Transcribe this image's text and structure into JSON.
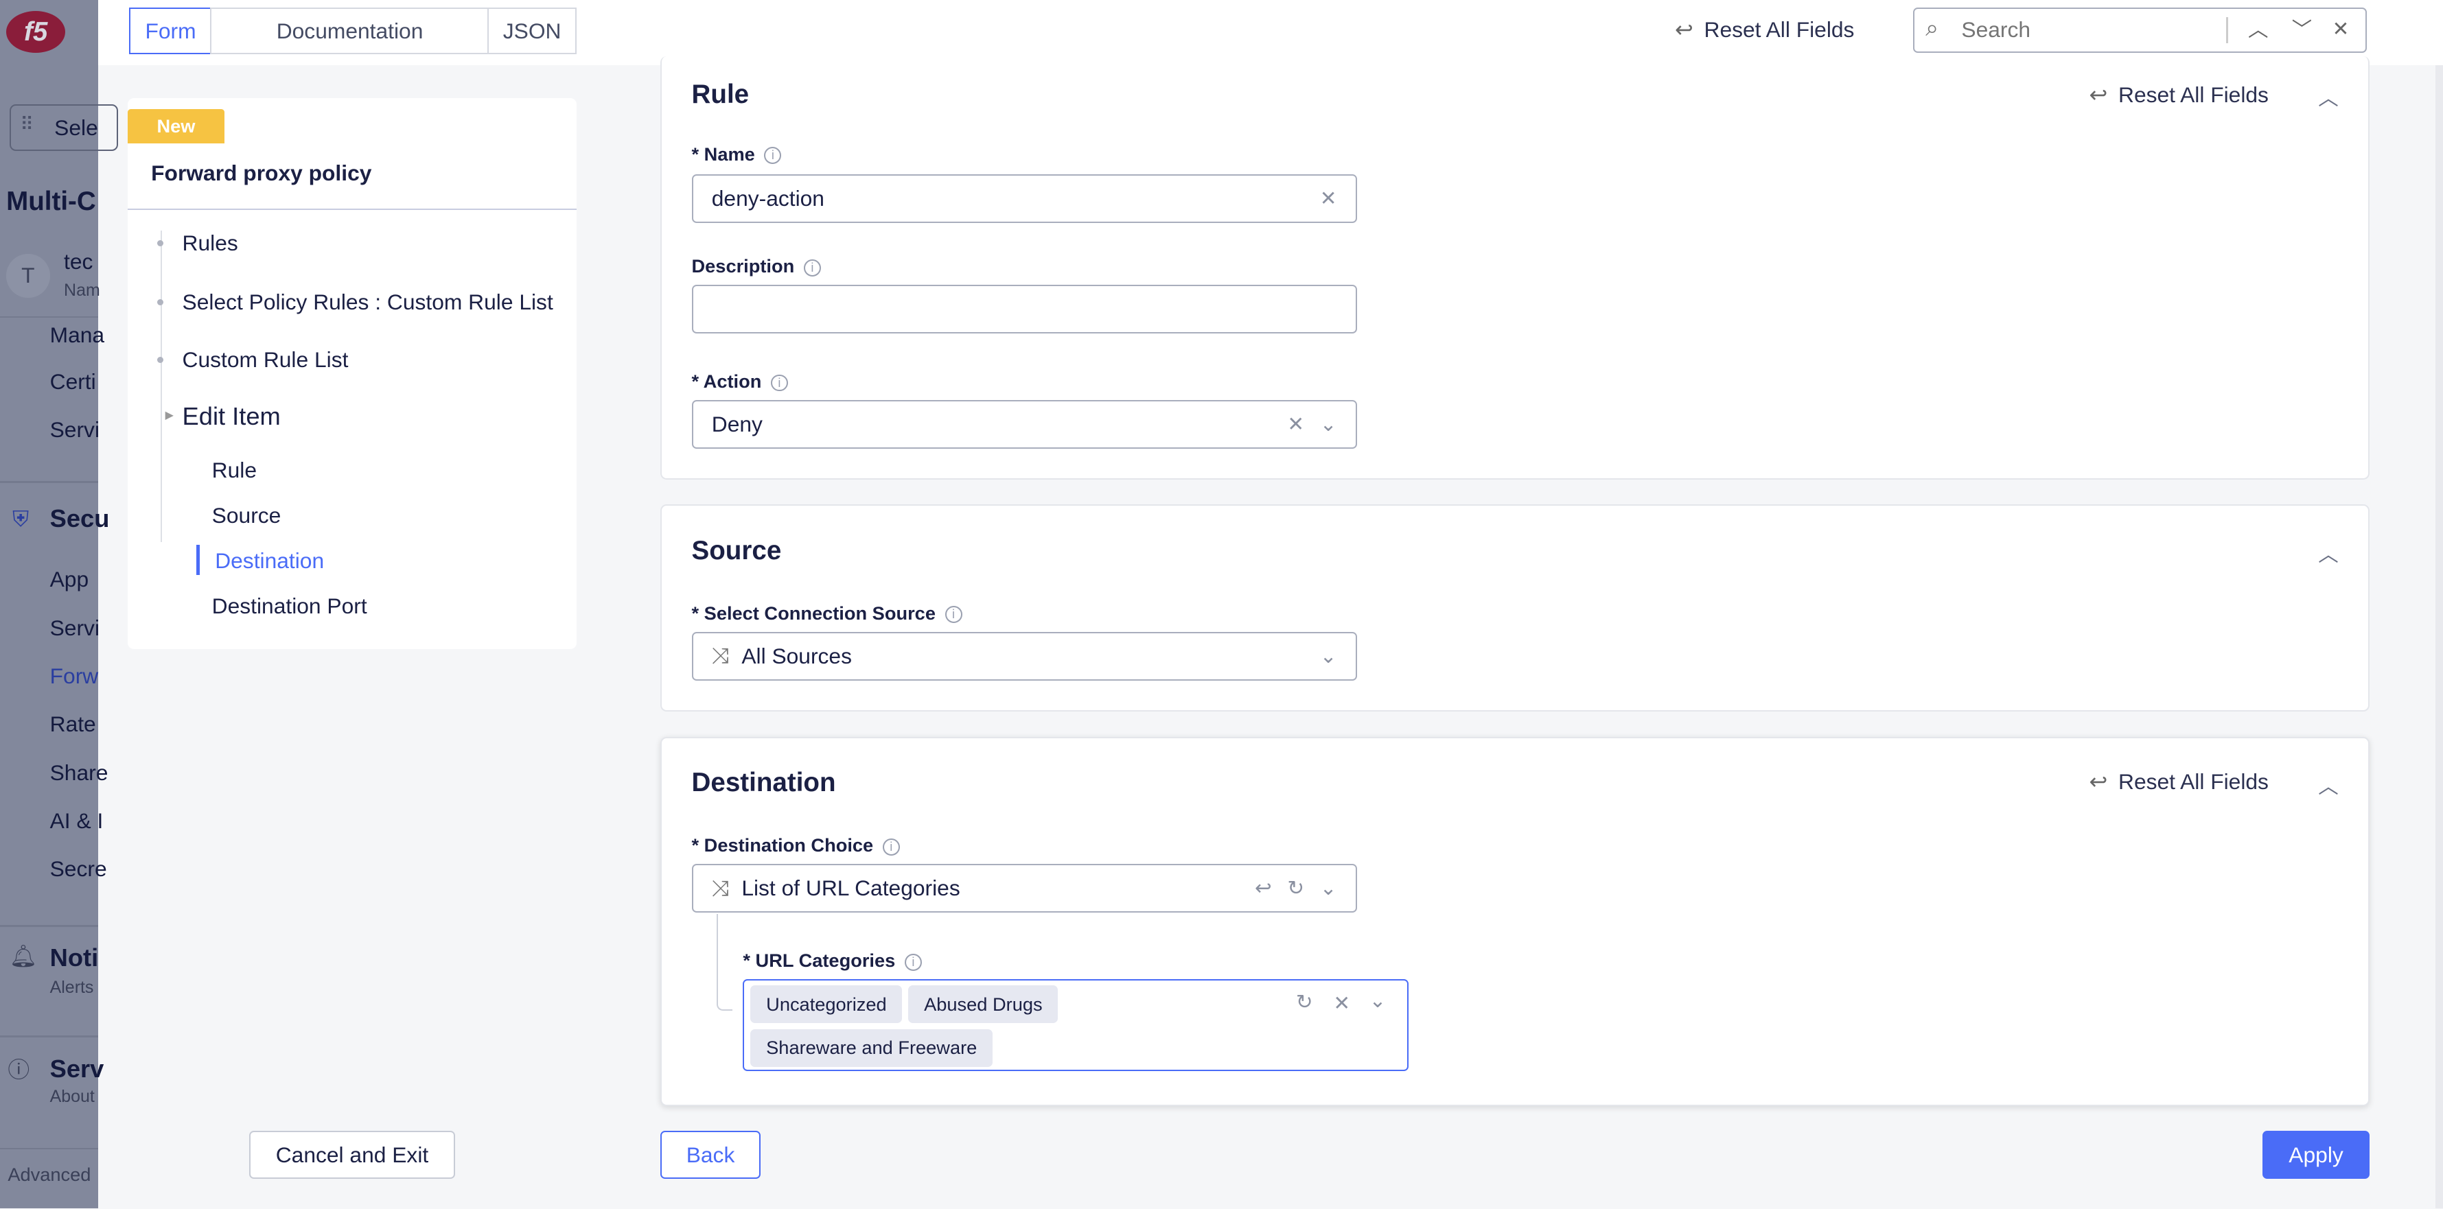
{
  "sidebar": {
    "logo": "f5",
    "select_label": "Sele",
    "workspace": "Multi-C",
    "user_initial": "T",
    "user_name": "tec",
    "user_sub": "Nam",
    "items": [
      "Mana",
      "Certi",
      "Servi"
    ],
    "security": "Secu",
    "security_items": [
      "App",
      "Servi",
      "Forw",
      "Rate",
      "Share",
      "AI & I",
      "Secre"
    ],
    "notifications": "Noti",
    "notifications_sub": "Alerts",
    "services": "Serv",
    "services_sub": "About",
    "advanced": "Advanced"
  },
  "tabs": {
    "form": "Form",
    "documentation": "Documentation",
    "json": "JSON"
  },
  "toolbar": {
    "reset_all": "Reset All Fields",
    "search_placeholder": "Search"
  },
  "nav": {
    "badge": "New",
    "title": "Forward proxy policy",
    "items": [
      "Rules",
      "Select Policy Rules : Custom Rule List",
      "Custom Rule List"
    ],
    "edit_item": "Edit Item",
    "sub_items": [
      "Rule",
      "Source",
      "Destination",
      "Destination Port"
    ]
  },
  "rule": {
    "title": "Rule",
    "reset": "Reset All Fields",
    "name_label": "* Name",
    "name_value": "deny-action",
    "description_label": "Description",
    "description_value": "",
    "action_label": "* Action",
    "action_value": "Deny"
  },
  "source": {
    "title": "Source",
    "conn_label": "* Select Connection Source",
    "conn_value": "All Sources"
  },
  "destination": {
    "title": "Destination",
    "reset": "Reset All Fields",
    "choice_label": "* Destination Choice",
    "choice_value": "List of URL Categories",
    "url_label": "* URL Categories",
    "url_values": [
      "Uncategorized",
      "Abused Drugs",
      "Shareware and Freeware"
    ]
  },
  "footer": {
    "cancel": "Cancel and Exit",
    "back": "Back",
    "apply": "Apply"
  },
  "colors": {
    "accent": "#4a6cf7",
    "badge": "#f6c342",
    "brand": "#c8102e"
  }
}
